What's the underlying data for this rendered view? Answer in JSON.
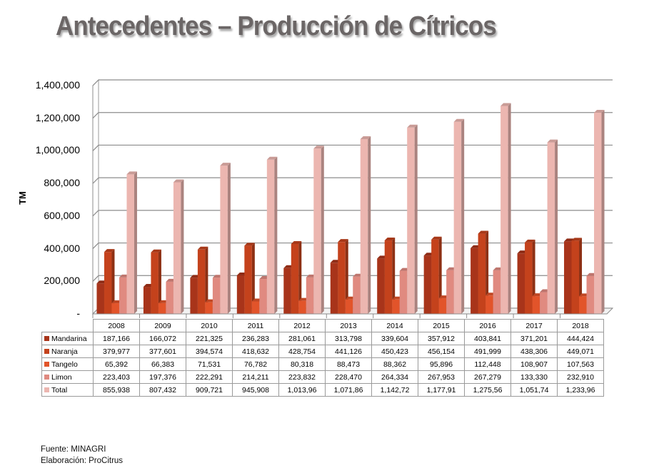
{
  "slide": {
    "title": "Antecedentes – Producción de Cítricos",
    "footer": {
      "source": "Fuente: MINAGRI",
      "elaboration": "Elaboración: ProCitrus"
    }
  },
  "chart_data": {
    "type": "bar",
    "style": "3d-clustered-column-with-data-table",
    "title": "",
    "xlabel": "",
    "ylabel": "TM",
    "ylim": [
      0,
      1400000
    ],
    "yticks": [
      "-",
      "200,000",
      "400,000",
      "600,000",
      "800,000",
      "1,000,000",
      "1,200,000",
      "1,400,000"
    ],
    "grid": true,
    "legend_position": "data-table",
    "categories": [
      "2008",
      "2009",
      "2010",
      "2011",
      "2012",
      "2013",
      "2014",
      "2015",
      "2016",
      "2017",
      "2018"
    ],
    "series": [
      {
        "name": "Mandarina",
        "color": "#a8341a",
        "values": [
          187166,
          166072,
          221325,
          236283,
          281061,
          313798,
          339604,
          357912,
          403841,
          371201,
          444424
        ],
        "labels": [
          "187,166",
          "166,072",
          "221,325",
          "236,283",
          "281,061",
          "313,798",
          "339,604",
          "357,912",
          "403,841",
          "371,201",
          "444,424"
        ]
      },
      {
        "name": "Naranja",
        "color": "#c4421c",
        "values": [
          379977,
          377601,
          394574,
          418632,
          428754,
          441126,
          450423,
          456154,
          491999,
          438306,
          449071
        ],
        "labels": [
          "379,977",
          "377,601",
          "394,574",
          "418,632",
          "428,754",
          "441,126",
          "450,423",
          "456,154",
          "491,999",
          "438,306",
          "449,071"
        ]
      },
      {
        "name": "Tangelo",
        "color": "#e2542a",
        "values": [
          65392,
          66383,
          71531,
          76782,
          80318,
          88473,
          88362,
          95896,
          112448,
          108907,
          107563
        ],
        "labels": [
          "65,392",
          "66,383",
          "71,531",
          "76,782",
          "80,318",
          "88,473",
          "88,362",
          "95,896",
          "112,448",
          "108,907",
          "107,563"
        ]
      },
      {
        "name": "Limon",
        "color": "#e08a80",
        "values": [
          223403,
          197376,
          222291,
          214211,
          223832,
          228470,
          264334,
          267953,
          267279,
          133330,
          232910
        ],
        "labels": [
          "223,403",
          "197,376",
          "222,291",
          "214,211",
          "223,832",
          "228,470",
          "264,334",
          "267,953",
          "267,279",
          "133,330",
          "232,910"
        ]
      },
      {
        "name": "Total",
        "color": "#ecb6b0",
        "values": [
          855938,
          807432,
          909721,
          945908,
          1013960,
          1071860,
          1142720,
          1177910,
          1275560,
          1051740,
          1233960
        ],
        "labels": [
          "855,938",
          "807,432",
          "909,721",
          "945,908",
          "1,013,96",
          "1,071,86",
          "1,142,72",
          "1,177,91",
          "1,275,56",
          "1,051,74",
          "1,233,96"
        ]
      }
    ]
  }
}
